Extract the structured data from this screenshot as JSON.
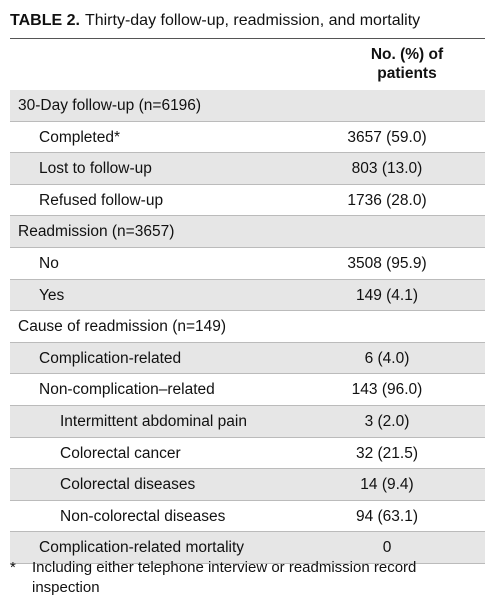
{
  "table": {
    "caption": {
      "label": "TABLE 2.",
      "text": "Thirty-day follow-up, readmission, and mortality"
    },
    "column_header": "No. (%) of patients",
    "sections": [
      {
        "label": "30-Day follow-up (n=6196)",
        "items": [
          {
            "label": "Completed*",
            "value": "3657 (59.0)"
          },
          {
            "label": "Lost to follow-up",
            "value": "803 (13.0)"
          },
          {
            "label": "Refused follow-up",
            "value": "1736 (28.0)"
          }
        ]
      },
      {
        "label": "Readmission (n=3657)",
        "items": [
          {
            "label": "No",
            "value": "3508 (95.9)"
          },
          {
            "label": "Yes",
            "value": "149 (4.1)"
          }
        ]
      },
      {
        "label": "Cause of readmission (n=149)",
        "items": [
          {
            "label": "Complication-related",
            "value": "6 (4.0)"
          },
          {
            "label": "Non-complication–related",
            "value": "143 (96.0)",
            "items": [
              {
                "label": "Intermittent abdominal pain",
                "value": "3 (2.0)"
              },
              {
                "label": "Colorectal cancer",
                "value": "32 (21.5)"
              },
              {
                "label": "Colorectal diseases",
                "value": "14 (9.4)"
              },
              {
                "label": "Non-colorectal diseases",
                "value": "94 (63.1)"
              }
            ]
          },
          {
            "label": "Complication-related mortality",
            "value": "0"
          }
        ]
      }
    ],
    "footnote": {
      "mark": "*",
      "text": "Including either telephone interview or readmission record inspection"
    }
  }
}
